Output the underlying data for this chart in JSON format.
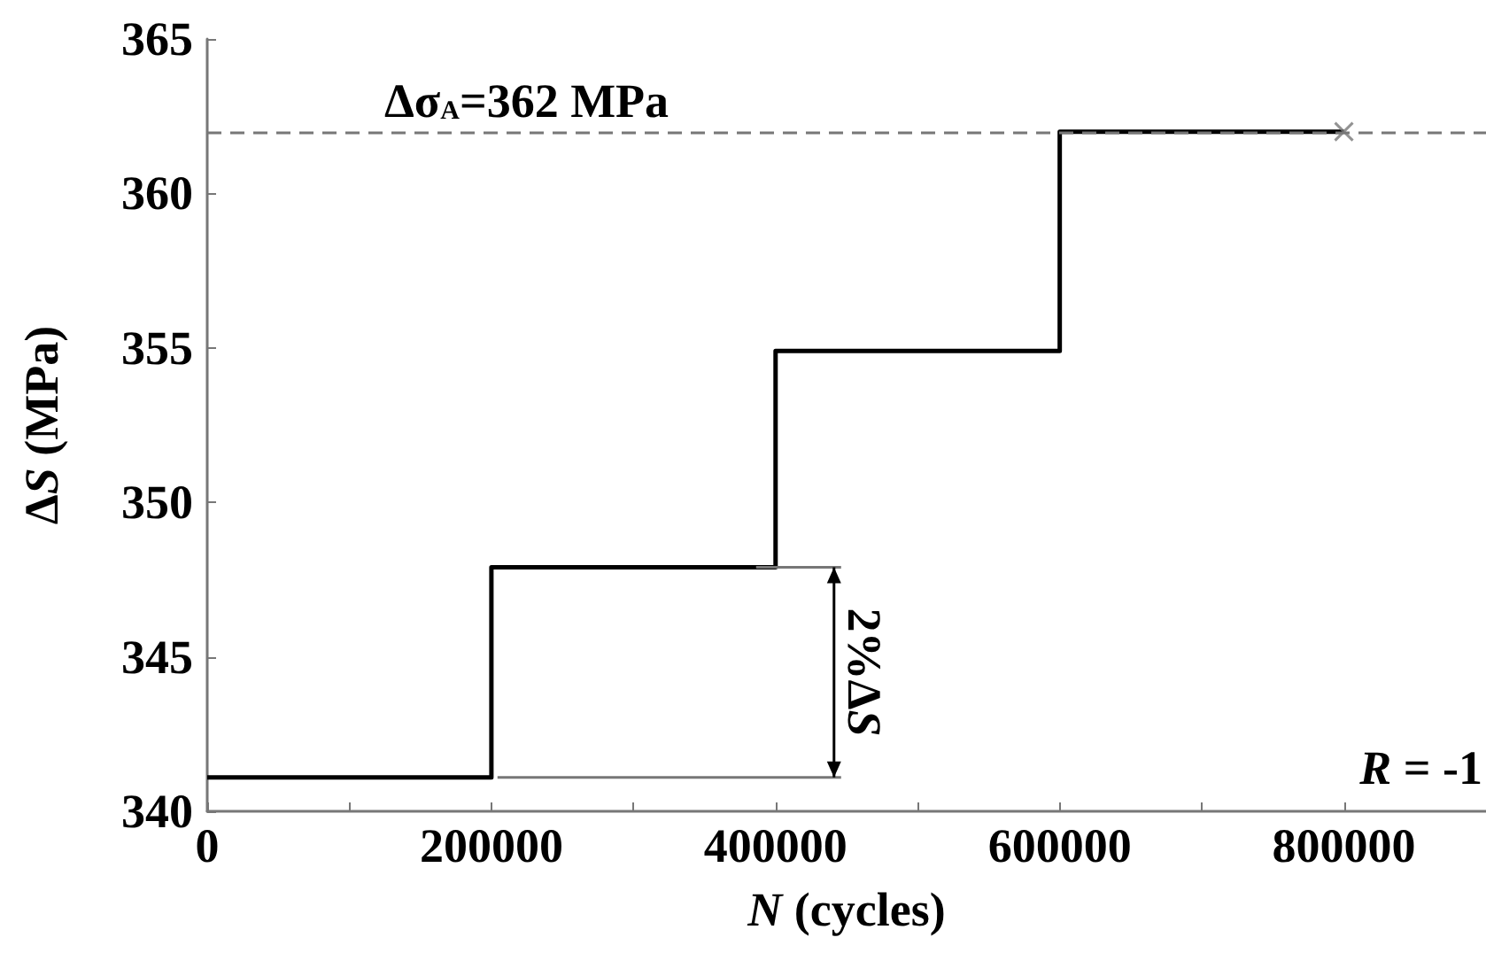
{
  "chart_data": {
    "type": "step",
    "xlabel": "N (cycles)",
    "ylabel": "ΔS (MPa)",
    "x": [
      0,
      200000,
      400000,
      600000,
      800000
    ],
    "series": [
      {
        "color": "#000000",
        "values": [
          341.1,
          347.9,
          354.9,
          362,
          362
        ],
        "marker": "none",
        "line_style": "solid"
      },
      {
        "type": "scatter",
        "color": "#777777",
        "values": [
          null,
          null,
          null,
          null,
          362
        ],
        "marker": "cross"
      }
    ],
    "xlim": [
      0,
      900000
    ],
    "xticks": [
      0,
      {
        "value": 100000,
        "label": null
      },
      200000,
      {
        "value": 300000,
        "label": null
      },
      400000,
      {
        "value": 500000,
        "label": null
      },
      600000,
      {
        "value": 700000,
        "label": null
      },
      800000
    ],
    "ylim": [
      340,
      365
    ],
    "yticks": [
      340,
      345,
      350,
      355,
      360,
      365
    ],
    "ref_lines": [
      {
        "axis": "y",
        "value": 362,
        "label": "Δσ$_{A}$=362 MPa",
        "color": "#777777",
        "line_style": "dashed"
      }
    ],
    "annotations": [
      {
        "text": "2%ΔS",
        "x": 400000,
        "y": 347.9
      },
      "R = -1"
    ],
    "grid": false
  }
}
